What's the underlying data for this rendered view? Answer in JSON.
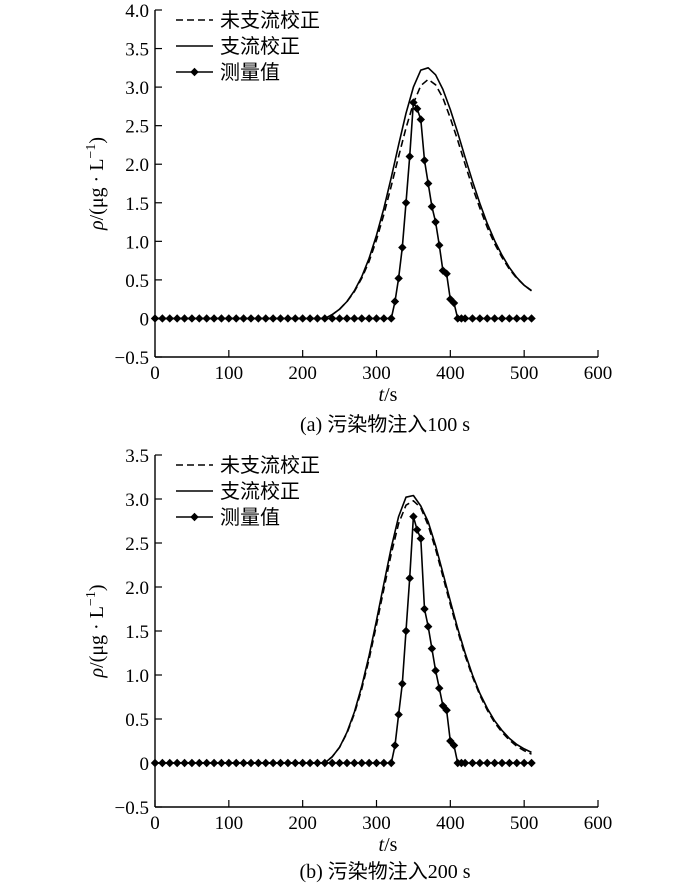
{
  "chart_data": [
    {
      "type": "line",
      "caption": "(a) 污染物注入100 s",
      "xlabel_var": "t",
      "xlabel_unit": "/s",
      "ylabel_var": "ρ",
      "ylabel_unit": "/(μg · L",
      "ylabel_sup": "−1",
      "ylabel_close": ")",
      "xlim": [
        0,
        600
      ],
      "ylim": [
        -0.5,
        4.0
      ],
      "xticks": [
        0,
        100,
        200,
        300,
        400,
        500,
        600
      ],
      "xtick_labels": [
        "0",
        "100",
        "200",
        "300",
        "400",
        "500",
        "600"
      ],
      "yticks": [
        -0.5,
        0,
        0.5,
        1.0,
        1.5,
        2.0,
        2.5,
        3.0,
        3.5,
        4.0
      ],
      "ytick_labels": [
        "−0.5",
        "0",
        "0.5",
        "1.0",
        "1.5",
        "2.0",
        "2.5",
        "3.0",
        "3.5",
        "4.0"
      ],
      "legend_position": "top-left",
      "series": [
        {
          "name": "未支流校正",
          "style": "dashed",
          "x": [
            0,
            230,
            240,
            250,
            260,
            270,
            280,
            290,
            300,
            310,
            320,
            330,
            340,
            350,
            360,
            370,
            380,
            390,
            400,
            410,
            420,
            430,
            440,
            450,
            460,
            470,
            480,
            490,
            500,
            510
          ],
          "y": [
            0,
            0,
            0.05,
            0.12,
            0.22,
            0.35,
            0.52,
            0.74,
            1.02,
            1.35,
            1.72,
            2.1,
            2.47,
            2.79,
            3.02,
            3.1,
            3.03,
            2.86,
            2.6,
            2.31,
            2.0,
            1.7,
            1.43,
            1.18,
            0.97,
            0.79,
            0.64,
            0.52,
            0.43,
            0.36
          ]
        },
        {
          "name": "支流校正",
          "style": "solid",
          "x": [
            0,
            230,
            240,
            250,
            260,
            270,
            280,
            290,
            300,
            310,
            320,
            330,
            340,
            350,
            360,
            370,
            380,
            390,
            400,
            410,
            420,
            430,
            440,
            450,
            460,
            470,
            480,
            490,
            500,
            510
          ],
          "y": [
            0,
            0,
            0.05,
            0.12,
            0.22,
            0.36,
            0.54,
            0.78,
            1.08,
            1.43,
            1.83,
            2.25,
            2.66,
            3.0,
            3.22,
            3.25,
            3.16,
            2.97,
            2.71,
            2.41,
            2.09,
            1.78,
            1.49,
            1.23,
            1.01,
            0.82,
            0.66,
            0.53,
            0.43,
            0.36
          ]
        },
        {
          "name": "测量值",
          "style": "solid-diamond",
          "x": [
            0,
            10,
            20,
            30,
            40,
            50,
            60,
            70,
            80,
            90,
            100,
            110,
            120,
            130,
            140,
            150,
            160,
            170,
            180,
            190,
            200,
            210,
            220,
            230,
            240,
            250,
            260,
            270,
            280,
            290,
            300,
            310,
            320,
            325,
            330,
            335,
            340,
            345,
            350,
            355,
            360,
            365,
            370,
            375,
            380,
            385,
            390,
            395,
            400,
            405,
            410,
            415,
            420,
            430,
            440,
            450,
            460,
            470,
            480,
            490,
            500,
            510
          ],
          "y": [
            0,
            0,
            0,
            0,
            0,
            0,
            0,
            0,
            0,
            0,
            0,
            0,
            0,
            0,
            0,
            0,
            0,
            0,
            0,
            0,
            0,
            0,
            0,
            0,
            0,
            0,
            0,
            0,
            0,
            0,
            0,
            0,
            0,
            0.22,
            0.52,
            0.92,
            1.5,
            2.1,
            2.8,
            2.72,
            2.58,
            2.05,
            1.75,
            1.45,
            1.25,
            0.95,
            0.62,
            0.58,
            0.25,
            0.2,
            0,
            0,
            0,
            0,
            0,
            0,
            0,
            0,
            0,
            0,
            0,
            0
          ]
        }
      ]
    },
    {
      "type": "line",
      "caption": "(b) 污染物注入200 s",
      "xlabel_var": "t",
      "xlabel_unit": "/s",
      "ylabel_var": "ρ",
      "ylabel_unit": "/(μg · L",
      "ylabel_sup": "−1",
      "ylabel_close": ")",
      "xlim": [
        0,
        600
      ],
      "ylim": [
        -0.5,
        3.5
      ],
      "xticks": [
        0,
        100,
        200,
        300,
        400,
        500,
        600
      ],
      "xtick_labels": [
        "0",
        "100",
        "200",
        "300",
        "400",
        "500",
        "600"
      ],
      "yticks": [
        -0.5,
        0,
        0.5,
        1.0,
        1.5,
        2.0,
        2.5,
        3.0,
        3.5
      ],
      "ytick_labels": [
        "−0.5",
        "0",
        "0.5",
        "1.0",
        "1.5",
        "2.0",
        "2.5",
        "3.0",
        "3.5"
      ],
      "legend_position": "top-left",
      "series": [
        {
          "name": "未支流校正",
          "style": "dashed",
          "x": [
            0,
            230,
            240,
            250,
            260,
            270,
            280,
            290,
            300,
            310,
            320,
            330,
            340,
            350,
            360,
            370,
            380,
            390,
            400,
            410,
            420,
            430,
            440,
            450,
            460,
            470,
            480,
            490,
            500,
            510
          ],
          "y": [
            0,
            0,
            0.07,
            0.18,
            0.34,
            0.56,
            0.84,
            1.18,
            1.57,
            1.98,
            2.38,
            2.72,
            2.93,
            2.98,
            2.9,
            2.7,
            2.43,
            2.12,
            1.8,
            1.5,
            1.22,
            0.98,
            0.77,
            0.6,
            0.46,
            0.35,
            0.26,
            0.19,
            0.14,
            0.1
          ]
        },
        {
          "name": "支流校正",
          "style": "solid",
          "x": [
            0,
            230,
            240,
            250,
            260,
            270,
            280,
            290,
            300,
            310,
            320,
            330,
            340,
            350,
            360,
            370,
            380,
            390,
            400,
            410,
            420,
            430,
            440,
            450,
            460,
            470,
            480,
            490,
            500,
            510
          ],
          "y": [
            0,
            0,
            0.07,
            0.18,
            0.35,
            0.58,
            0.87,
            1.22,
            1.62,
            2.04,
            2.45,
            2.8,
            3.02,
            3.04,
            2.92,
            2.74,
            2.47,
            2.16,
            1.84,
            1.53,
            1.25,
            1.0,
            0.79,
            0.62,
            0.48,
            0.37,
            0.28,
            0.21,
            0.16,
            0.12
          ]
        },
        {
          "name": "测量值",
          "style": "solid-diamond",
          "x": [
            0,
            10,
            20,
            30,
            40,
            50,
            60,
            70,
            80,
            90,
            100,
            110,
            120,
            130,
            140,
            150,
            160,
            170,
            180,
            190,
            200,
            210,
            220,
            230,
            240,
            250,
            260,
            270,
            280,
            290,
            300,
            310,
            320,
            325,
            330,
            335,
            340,
            345,
            350,
            355,
            360,
            365,
            370,
            375,
            380,
            385,
            390,
            395,
            400,
            405,
            410,
            415,
            420,
            430,
            440,
            450,
            460,
            470,
            480,
            490,
            500,
            510
          ],
          "y": [
            0,
            0,
            0,
            0,
            0,
            0,
            0,
            0,
            0,
            0,
            0,
            0,
            0,
            0,
            0,
            0,
            0,
            0,
            0,
            0,
            0,
            0,
            0,
            0,
            0,
            0,
            0,
            0,
            0,
            0,
            0,
            0,
            0,
            0.2,
            0.55,
            0.9,
            1.5,
            2.1,
            2.8,
            2.65,
            2.55,
            1.75,
            1.55,
            1.3,
            1.05,
            0.85,
            0.65,
            0.6,
            0.25,
            0.2,
            0,
            0,
            0,
            0,
            0,
            0,
            0,
            0,
            0,
            0,
            0,
            0
          ]
        }
      ]
    }
  ]
}
